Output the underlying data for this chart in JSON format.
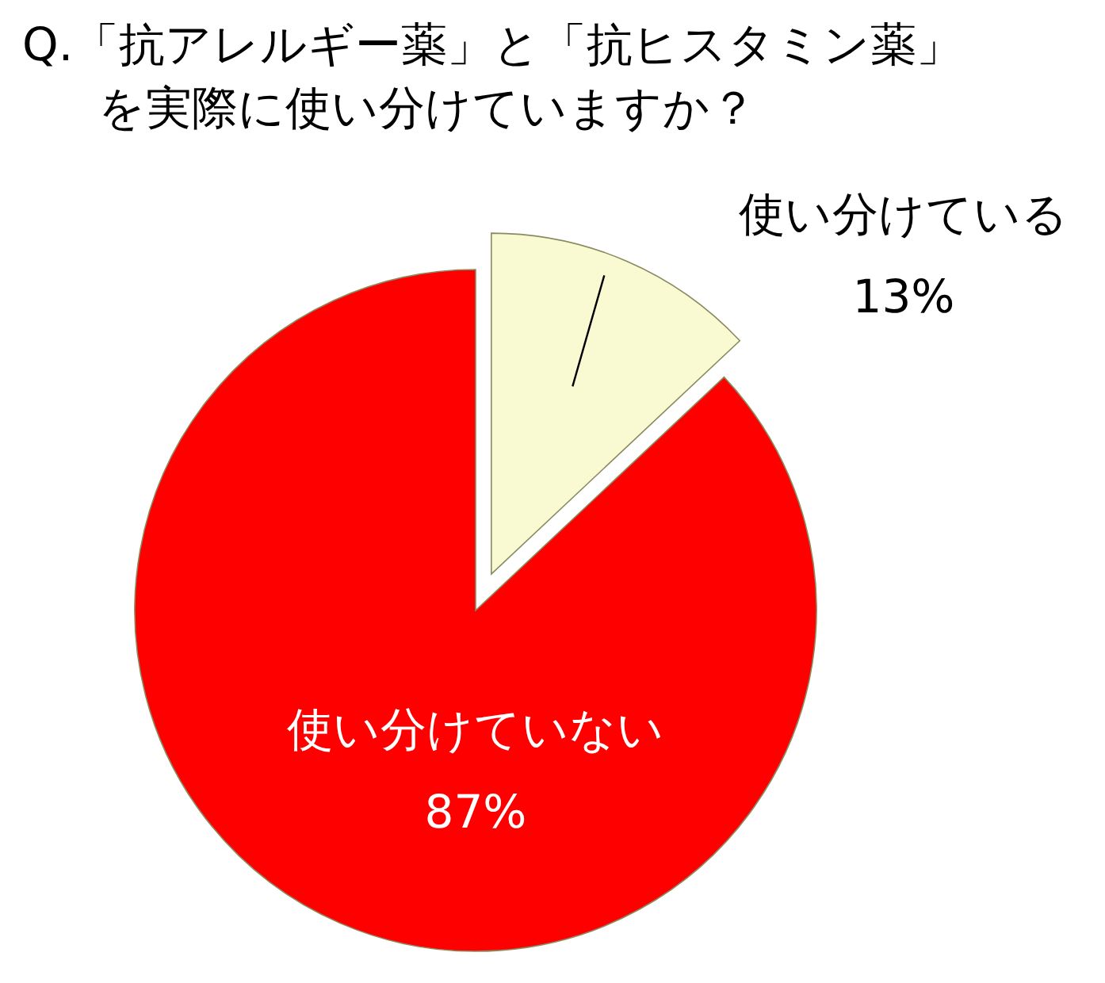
{
  "chart_data": {
    "type": "pie",
    "title": "Q.「抗アレルギー薬」と「抗ヒスタミン薬」を実際に使い分けていますか？",
    "categories": [
      "使い分けている",
      "使い分けていない"
    ],
    "values": [
      13,
      87
    ],
    "value_labels": [
      "13%",
      "87%"
    ],
    "colors": [
      "#fafad2",
      "#ff0000"
    ]
  }
}
